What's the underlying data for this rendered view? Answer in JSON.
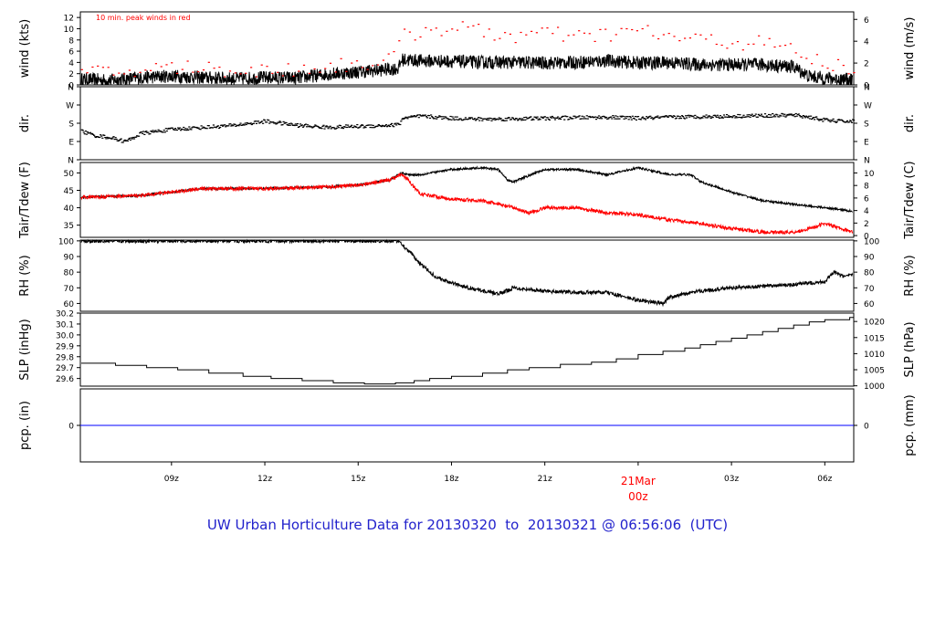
{
  "title": "UW Urban Horticulture Data for 20130320  to  20130321 @ 06:56:06  (UTC)",
  "colors": {
    "obs": "#000000",
    "peak": "#ff0000",
    "dew": "#ff0000",
    "pcp": "#0000ff",
    "title": "#2222cc",
    "date_label": "#ff0000"
  },
  "chart_data": {
    "type": "line",
    "x_axis": {
      "start_hour": 6.07,
      "end_hour": 30.93,
      "ticks": [
        {
          "hour": 9,
          "label": "09z"
        },
        {
          "hour": 12,
          "label": "12z"
        },
        {
          "hour": 15,
          "label": "15z"
        },
        {
          "hour": 18,
          "label": "18z"
        },
        {
          "hour": 21,
          "label": "21z"
        },
        {
          "hour": 24,
          "label": "00z",
          "date_label": "21Mar"
        },
        {
          "hour": 27,
          "label": "03z"
        },
        {
          "hour": 30,
          "label": "06z"
        }
      ]
    },
    "panels": [
      {
        "id": "wind",
        "left_label": "wind (kts)",
        "right_label": "wind (m/s)",
        "left_range": [
          0,
          13
        ],
        "right_range": [
          0,
          6.69
        ],
        "left_ticks": [
          "0",
          "2",
          "4",
          "6",
          "8",
          "10",
          "12"
        ],
        "left_tick_values": [
          0,
          2,
          4,
          6,
          8,
          10,
          12
        ],
        "right_ticks": [
          "0",
          "2",
          "4",
          "6"
        ],
        "right_tick_values": [
          0,
          2,
          4,
          6
        ],
        "annotation": "10 min. peak winds in red",
        "series": [
          {
            "name": "wind speed",
            "color": "#000000",
            "x": [
              6.1,
              7,
              8,
              9,
              10,
              11,
              12,
              13,
              14,
              15,
              16,
              16.3,
              16.4,
              17,
              18,
              19,
              20,
              21,
              22,
              23,
              24,
              25,
              26,
              27,
              28,
              29,
              29.5,
              30,
              30.5,
              30.9
            ],
            "y": [
              1,
              0.8,
              1.3,
              1.6,
              1.3,
              1.1,
              1.3,
              1.2,
              1.9,
              2.3,
              2.8,
              2.9,
              4.5,
              4.3,
              4.2,
              4.0,
              4.0,
              3.9,
              4.0,
              4.3,
              3.9,
              4.0,
              3.6,
              3.6,
              3.6,
              3.2,
              1.5,
              1.2,
              1.0,
              0.9
            ],
            "noise": 1.2
          },
          {
            "name": "peak",
            "color": "#ff0000",
            "style": "dots",
            "x": [
              6.2,
              7,
              8,
              9,
              10,
              11,
              12,
              13,
              14,
              15,
              16,
              16.4,
              17,
              18,
              19,
              20,
              21,
              22,
              23,
              24,
              25,
              26,
              27,
              28,
              29,
              29.5,
              30,
              30.5,
              30.9
            ],
            "y": [
              2.2,
              2.1,
              2.6,
              3.2,
              3.0,
              2.7,
              2.5,
              2.8,
              3.3,
              3.8,
              4.3,
              8.5,
              9.6,
              10.3,
              9.4,
              8.7,
              9.2,
              8.4,
              9.0,
              9.7,
              8.5,
              8.0,
              7.6,
              7.4,
              6.2,
              4.5,
              3.8,
              3.4,
              3.2
            ],
            "noise": 1.4
          }
        ]
      },
      {
        "id": "dir",
        "left_label": "dir.",
        "right_label": "dir.",
        "left_range": [
          0,
          360
        ],
        "right_range": [
          0,
          360
        ],
        "left_ticks": [
          "N",
          "E",
          "S",
          "W",
          "N"
        ],
        "left_tick_values": [
          0,
          90,
          180,
          270,
          360
        ],
        "right_ticks": [
          "N",
          "E",
          "S",
          "W",
          "N"
        ],
        "right_tick_values": [
          0,
          90,
          180,
          270,
          360
        ],
        "series": [
          {
            "name": "wind direction",
            "color": "#000000",
            "style": "dots",
            "x": [
              6.1,
              6.5,
              7,
              7.5,
              8,
              9,
              10,
              11,
              12,
              13,
              14,
              15,
              16,
              16.3,
              16.4,
              17,
              18,
              19,
              20,
              21,
              22,
              23,
              24,
              25,
              26,
              27,
              28,
              29,
              29.5,
              30,
              30.5,
              30.9
            ],
            "y": [
              140,
              120,
              110,
              90,
              130,
              150,
              160,
              170,
              190,
              170,
              160,
              165,
              170,
              175,
              205,
              215,
              205,
              200,
              202,
              205,
              208,
              210,
              205,
              210,
              213,
              215,
              218,
              220,
              210,
              195,
              190,
              190
            ],
            "noise": 9
          }
        ]
      },
      {
        "id": "temp",
        "left_label": "Tair/Tdew (F)",
        "right_label": "Tair/Tdew (C)",
        "left_range": [
          31.5,
          53
        ],
        "right_range": [
          -0.28,
          11.67
        ],
        "left_ticks": [
          "35",
          "40",
          "45",
          "50"
        ],
        "left_tick_values": [
          35,
          40,
          45,
          50
        ],
        "right_ticks": [
          "0",
          "2",
          "4",
          "6",
          "8",
          "10"
        ],
        "right_tick_values": [
          0,
          2,
          4,
          6,
          8,
          10
        ],
        "series": [
          {
            "name": "Tair",
            "color": "#000000",
            "x": [
              6.1,
              8,
              10,
              12,
              14,
              15,
              16,
              16.4,
              16.6,
              17,
              18,
              19,
              19.5,
              19.8,
              20,
              21,
              22,
              23,
              24,
              25,
              25.7,
              26,
              27,
              28,
              29,
              30,
              30.9
            ],
            "y": [
              43,
              43.5,
              45.5,
              45.5,
              46,
              46.5,
              48,
              50,
              49.5,
              49.5,
              51,
              51.5,
              51,
              48,
              47.5,
              51,
              51,
              49.5,
              51.5,
              49.5,
              49.5,
              47.5,
              44.5,
              42,
              41,
              40,
              39
            ],
            "noise": 0.3
          },
          {
            "name": "Tdew",
            "color": "#ff0000",
            "x": [
              6.1,
              8,
              10,
              12,
              14,
              15,
              16,
              16.4,
              16.6,
              17,
              18,
              19,
              20,
              20.5,
              21,
              22,
              23,
              24,
              25,
              26,
              27,
              28,
              29,
              29.5,
              30,
              30.5,
              30.9
            ],
            "y": [
              43,
              43.5,
              45.5,
              45.5,
              46,
              46.5,
              48,
              49.5,
              48,
              44,
              42.5,
              42,
              40,
              38.5,
              40,
              40,
              38.5,
              38,
              36.5,
              35.5,
              34,
              33,
              33,
              34,
              35.5,
              34,
              33
            ],
            "noise": 0.5
          }
        ]
      },
      {
        "id": "rh",
        "left_label": "RH (%)",
        "right_label": "RH (%)",
        "left_range": [
          55,
          100.5
        ],
        "right_range": [
          55,
          100.5
        ],
        "left_ticks": [
          "60",
          "70",
          "80",
          "90",
          "100"
        ],
        "left_tick_values": [
          60,
          70,
          80,
          90,
          100
        ],
        "right_ticks": [
          "60",
          "70",
          "80",
          "90",
          "100"
        ],
        "right_tick_values": [
          60,
          70,
          80,
          90,
          100
        ],
        "series": [
          {
            "name": "RH",
            "color": "#000000",
            "x": [
              6.1,
              16.3,
              16.5,
              16.8,
              17,
              17.5,
              18,
              19,
              19.5,
              20,
              21,
              22,
              23,
              24,
              24.8,
              25,
              26,
              27,
              28,
              29,
              29.5,
              30,
              30.3,
              30.6,
              30.9
            ],
            "y": [
              100,
              100,
              96,
              90,
              85,
              77,
              73,
              68,
              66,
              70,
              68,
              67,
              67,
              62,
              60,
              64,
              68,
              70,
              71,
              72,
              73,
              74,
              80,
              77,
              78
            ],
            "noise": 1.2
          }
        ]
      },
      {
        "id": "slp",
        "left_label": "SLP (inHg)",
        "right_label": "SLP (hPa)",
        "left_range": [
          29.53,
          30.2
        ],
        "right_range": [
          999.9,
          1022.6
        ],
        "left_ticks": [
          "29.6",
          "29.7",
          "29.8",
          "29.9",
          "30.0",
          "30.1",
          "30.2"
        ],
        "left_tick_values": [
          29.6,
          29.7,
          29.8,
          29.9,
          30.0,
          30.1,
          30.2
        ],
        "right_ticks": [
          "1000",
          "1005",
          "1010",
          "1015",
          "1020"
        ],
        "right_tick_values": [
          1000,
          1005,
          1010,
          1015,
          1020
        ],
        "series": [
          {
            "name": "SLP",
            "color": "#000000",
            "style": "step",
            "x": [
              6.1,
              7.2,
              8.2,
              9.2,
              10.2,
              11.3,
              12.2,
              13.2,
              14.2,
              15.2,
              16.2,
              16.8,
              17.3,
              18,
              19,
              19.8,
              20.5,
              21.5,
              22.5,
              23.3,
              24,
              24.8,
              25.5,
              26,
              26.5,
              27,
              27.5,
              28,
              28.5,
              29,
              29.5,
              30,
              30.8,
              30.93
            ],
            "y": [
              29.74,
              29.72,
              29.7,
              29.68,
              29.65,
              29.62,
              29.6,
              29.58,
              29.56,
              29.55,
              29.56,
              29.58,
              29.6,
              29.62,
              29.65,
              29.68,
              29.7,
              29.73,
              29.75,
              29.78,
              29.82,
              29.85,
              29.88,
              29.91,
              29.94,
              29.97,
              30.0,
              30.03,
              30.06,
              30.09,
              30.12,
              30.14,
              30.16,
              30.16
            ]
          }
        ]
      },
      {
        "id": "pcp",
        "left_label": "pcp. (in)",
        "right_label": "pcp. (mm)",
        "left_range": [
          -0.5,
          0.5
        ],
        "right_range": [
          -12.7,
          12.7
        ],
        "left_ticks": [
          "0"
        ],
        "left_tick_values": [
          0
        ],
        "right_ticks": [
          "0"
        ],
        "right_tick_values": [
          0
        ],
        "series": [
          {
            "name": "precipitation",
            "color": "#0000ff",
            "x": [
              6.07,
              30.93
            ],
            "y": [
              0,
              0
            ]
          }
        ]
      }
    ]
  }
}
